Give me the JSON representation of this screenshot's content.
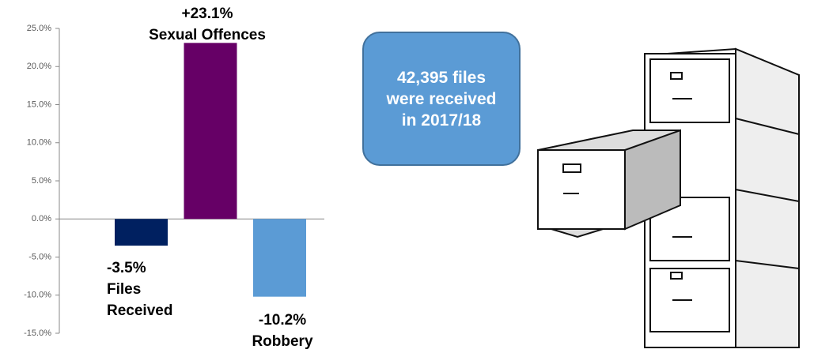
{
  "chart_data": {
    "type": "bar",
    "categories": [
      "Files Received",
      "Sexual Offences",
      "Robbery"
    ],
    "values": [
      -3.5,
      23.1,
      -10.2
    ],
    "value_labels": [
      "-3.5%",
      "+23.1%",
      "-10.2%"
    ],
    "colors": [
      "#002060",
      "#660066",
      "#5b9bd5"
    ],
    "ylim": [
      -15,
      25
    ],
    "yticks": [
      {
        "value": -15,
        "label": "-15.0%"
      },
      {
        "value": -10,
        "label": "-10.0%"
      },
      {
        "value": -5,
        "label": "-5.0%"
      },
      {
        "value": 0,
        "label": "0.0%"
      },
      {
        "value": 5,
        "label": "5.0%"
      },
      {
        "value": 10,
        "label": "10.0%"
      },
      {
        "value": 15,
        "label": "15.0%"
      },
      {
        "value": 20,
        "label": "20.0%"
      },
      {
        "value": 25,
        "label": "25.0%"
      }
    ],
    "grid": false
  },
  "callout": {
    "text": "42,395 files were received in 2017/18"
  }
}
